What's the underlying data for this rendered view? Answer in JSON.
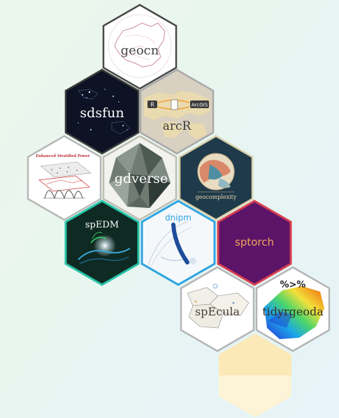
{
  "stickers": {
    "geocn": {
      "name": "geocn"
    },
    "sdsfun": {
      "name": "sdsfun"
    },
    "arcR": {
      "name": "arcR",
      "badge_left": "R",
      "badge_right": "ArcGIS"
    },
    "esp": {
      "name": "Enhanced Stratified Power"
    },
    "gdverse": {
      "name": "gdverse"
    },
    "geocomplexity": {
      "name": "geocomplexity"
    },
    "spEDM": {
      "name": "spEDM"
    },
    "dnipm": {
      "name": "dnipm"
    },
    "sptorch": {
      "name": "sptorch"
    },
    "spEcula": {
      "name": "spEcula"
    },
    "tidyrgeoda": {
      "name": "tidyrgeoda",
      "symbol": "%>%"
    }
  },
  "colors": {
    "placeholder_top": "#fbe9b8",
    "placeholder_bottom": "#fdf3d6",
    "spedm_border": "#27c4a8",
    "dnipm_border": "#2ea3e0",
    "sptorch_border": "#d8404f",
    "sptorch_fill": "#5c1468"
  }
}
